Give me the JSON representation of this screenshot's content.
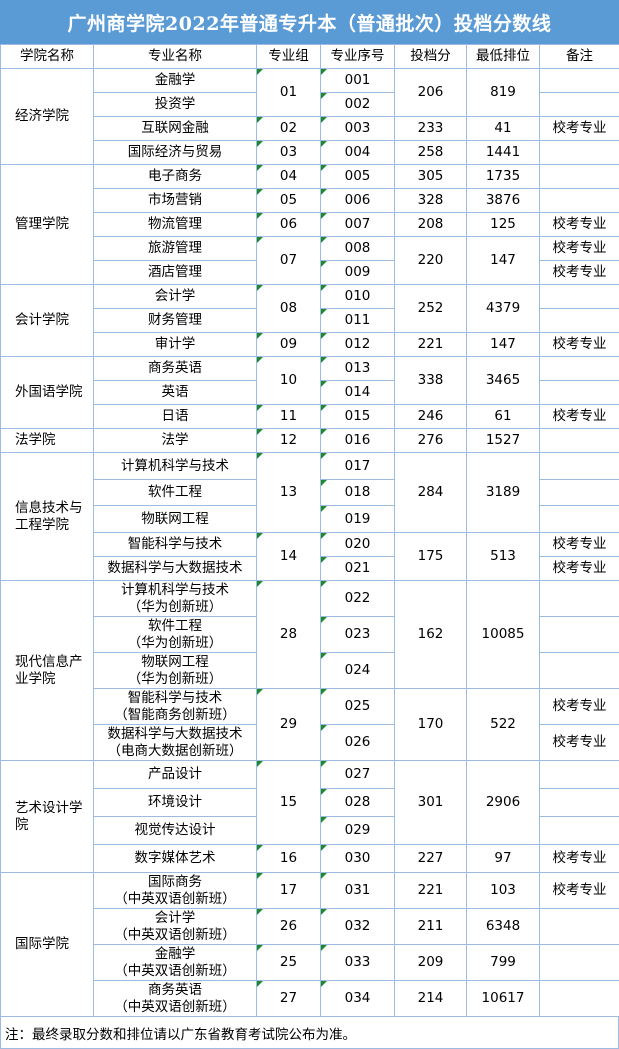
{
  "title": "广州商学院2022年普通专升本（普通批次）投档分数线",
  "headers": [
    "学院名称",
    "专业名称",
    "专业组",
    "专业序号",
    "投档分",
    "最低排位",
    "备注"
  ],
  "colleges": [
    {
      "name": "经济学院",
      "groups": [
        {
          "group": "01",
          "score": "206",
          "rank": "819",
          "majors": [
            {
              "name": "金融学",
              "code": "001",
              "remark": ""
            },
            {
              "name": "投资学",
              "code": "002",
              "remark": ""
            }
          ]
        },
        {
          "group": "02",
          "score": "233",
          "rank": "41",
          "majors": [
            {
              "name": "互联网金融",
              "code": "003",
              "remark": "校考专业"
            }
          ]
        },
        {
          "group": "03",
          "score": "258",
          "rank": "1441",
          "majors": [
            {
              "name": "国际经济与贸易",
              "code": "004",
              "remark": ""
            }
          ]
        }
      ]
    },
    {
      "name": "管理学院",
      "groups": [
        {
          "group": "04",
          "score": "305",
          "rank": "1735",
          "majors": [
            {
              "name": "电子商务",
              "code": "005",
              "remark": ""
            }
          ]
        },
        {
          "group": "05",
          "score": "328",
          "rank": "3876",
          "majors": [
            {
              "name": "市场营销",
              "code": "006",
              "remark": ""
            }
          ]
        },
        {
          "group": "06",
          "score": "208",
          "rank": "125",
          "majors": [
            {
              "name": "物流管理",
              "code": "007",
              "remark": "校考专业"
            }
          ]
        },
        {
          "group": "07",
          "score": "220",
          "rank": "147",
          "majors": [
            {
              "name": "旅游管理",
              "code": "008",
              "remark": "校考专业"
            },
            {
              "name": "酒店管理",
              "code": "009",
              "remark": "校考专业"
            }
          ]
        }
      ]
    },
    {
      "name": "会计学院",
      "groups": [
        {
          "group": "08",
          "score": "252",
          "rank": "4379",
          "majors": [
            {
              "name": "会计学",
              "code": "010",
              "remark": ""
            },
            {
              "name": "财务管理",
              "code": "011",
              "remark": ""
            }
          ]
        },
        {
          "group": "09",
          "score": "221",
          "rank": "147",
          "majors": [
            {
              "name": "审计学",
              "code": "012",
              "remark": "校考专业"
            }
          ]
        }
      ]
    },
    {
      "name": "外国语学院",
      "groups": [
        {
          "group": "10",
          "score": "338",
          "rank": "3465",
          "majors": [
            {
              "name": "商务英语",
              "code": "013",
              "remark": ""
            },
            {
              "name": "英语",
              "code": "014",
              "remark": ""
            }
          ]
        },
        {
          "group": "11",
          "score": "246",
          "rank": "61",
          "majors": [
            {
              "name": "日语",
              "code": "015",
              "remark": "校考专业"
            }
          ]
        }
      ]
    },
    {
      "name": "法学院",
      "groups": [
        {
          "group": "12",
          "score": "276",
          "rank": "1527",
          "majors": [
            {
              "name": "法学",
              "code": "016",
              "remark": ""
            }
          ]
        }
      ]
    },
    {
      "name": "信息技术与工程学院",
      "groups": [
        {
          "group": "13",
          "score": "284",
          "rank": "3189",
          "majors": [
            {
              "name": "计算机科学与技术",
              "code": "017",
              "remark": ""
            },
            {
              "name": "软件工程",
              "code": "018",
              "remark": ""
            },
            {
              "name": "物联网工程",
              "code": "019",
              "remark": ""
            }
          ]
        },
        {
          "group": "14",
          "score": "175",
          "rank": "513",
          "majors": [
            {
              "name": "智能科学与技术",
              "code": "020",
              "remark": "校考专业"
            },
            {
              "name": "数据科学与大数据技术",
              "code": "021",
              "remark": "校考专业"
            }
          ]
        }
      ]
    },
    {
      "name": "现代信息产业学院",
      "groups": [
        {
          "group": "28",
          "score": "162",
          "rank": "10085",
          "majors": [
            {
              "name": "计算机科学与技术",
              "sub": "（华为创新班）",
              "code": "022",
              "remark": ""
            },
            {
              "name": "软件工程",
              "sub": "（华为创新班）",
              "code": "023",
              "remark": ""
            },
            {
              "name": "物联网工程",
              "sub": "（华为创新班）",
              "code": "024",
              "remark": ""
            }
          ]
        },
        {
          "group": "29",
          "score": "170",
          "rank": "522",
          "majors": [
            {
              "name": "智能科学与技术",
              "sub": "（智能商务创新班）",
              "code": "025",
              "remark": "校考专业"
            },
            {
              "name": "数据科学与大数据技术",
              "sub": "（电商大数据创新班）",
              "code": "026",
              "remark": "校考专业"
            }
          ]
        }
      ]
    },
    {
      "name": "艺术设计学院",
      "groups": [
        {
          "group": "15",
          "score": "301",
          "rank": "2906",
          "majors": [
            {
              "name": "产品设计",
              "code": "027",
              "remark": ""
            },
            {
              "name": "环境设计",
              "code": "028",
              "remark": ""
            },
            {
              "name": "视觉传达设计",
              "code": "029",
              "remark": ""
            }
          ]
        },
        {
          "group": "16",
          "score": "227",
          "rank": "97",
          "majors": [
            {
              "name": "数字媒体艺术",
              "code": "030",
              "remark": "校考专业"
            }
          ]
        }
      ]
    },
    {
      "name": "国际学院",
      "groups": [
        {
          "group": "17",
          "score": "221",
          "rank": "103",
          "majors": [
            {
              "name": "国际商务",
              "sub": "（中英双语创新班）",
              "code": "031",
              "remark": "校考专业"
            }
          ]
        },
        {
          "group": "26",
          "score": "211",
          "rank": "6348",
          "majors": [
            {
              "name": "会计学",
              "sub": "（中英双语创新班）",
              "code": "032",
              "remark": ""
            }
          ]
        },
        {
          "group": "25",
          "score": "209",
          "rank": "799",
          "majors": [
            {
              "name": "金融学",
              "sub": "（中英双语创新班）",
              "code": "033",
              "remark": ""
            }
          ]
        },
        {
          "group": "27",
          "score": "214",
          "rank": "10617",
          "majors": [
            {
              "name": "商务英语",
              "sub": "（中英双语创新班）",
              "code": "034",
              "remark": ""
            }
          ]
        }
      ]
    }
  ],
  "footer": "注：最终录取分数和排位请以广东省教育考试院公布为准。",
  "colors": {
    "title_bar": "#5b9bd5",
    "grid": "#9dbbe0",
    "comment_marker": "#1e8a2e"
  }
}
